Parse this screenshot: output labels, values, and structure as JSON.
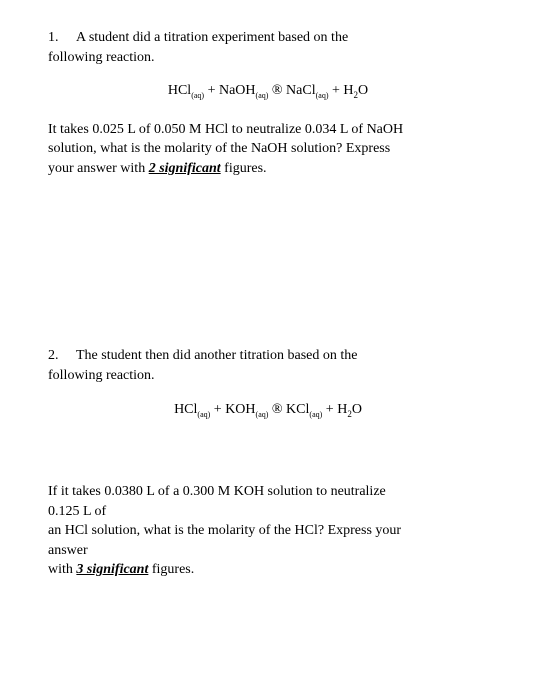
{
  "q1": {
    "number": "1.",
    "intro_line1": "A student did a titration experiment based on the",
    "intro_line2": "following reaction.",
    "equation": "HCl",
    "eq_sub1": "(aq)",
    "eq_plus1": " + NaOH",
    "eq_sub2": "(aq)",
    "eq_arrow": "  ®    NaCl",
    "eq_sub3": "(aq)",
    "eq_plus2": "   +    H",
    "eq_sub4": "2",
    "eq_end": "O",
    "follow_line1": "It takes 0.025 L of 0.050 M HCl to neutralize 0.034 L of NaOH",
    "follow_line2": "solution, what is the molarity of the NaOH solution?  Express",
    "follow_line3_a": "your answer with ",
    "follow_line3_emphasis": "2 significant",
    "follow_line3_b": " figures."
  },
  "q2": {
    "number": "2.",
    "intro_line1": "The student then did another titration based on the",
    "intro_line2": "following reaction.",
    "equation": "HCl",
    "eq_sub1": "(aq)",
    "eq_plus1": " + KOH",
    "eq_sub2": "(aq)",
    "eq_arrow": "  ®    KCl",
    "eq_sub3": "(aq)",
    "eq_plus2": "   +    H",
    "eq_sub4": "2",
    "eq_end": "O",
    "follow_line1": "If it takes 0.0380 L of a 0.300 M KOH solution to neutralize",
    "follow_line2": "0.125 L of",
    "follow_line3": "an HCl solution, what is the molarity of the HCl?  Express your",
    "follow_line4": "answer",
    "follow_line5_a": "with ",
    "follow_line5_emphasis": "3 significant",
    "follow_line5_b": " figures."
  }
}
